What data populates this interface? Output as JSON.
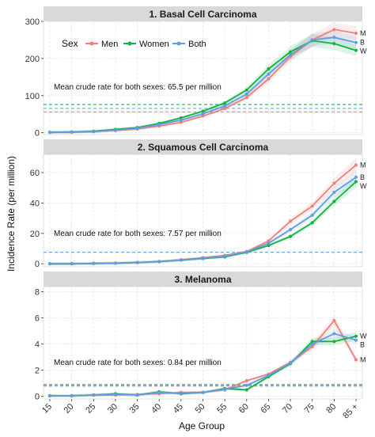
{
  "colors": {
    "Men": "#f07f78",
    "Women": "#12b23f",
    "Both": "#5f9de3"
  },
  "chart_data": {
    "type": "line",
    "xlabel": "Age Group",
    "ylabel": "Incidence Rate (per million)",
    "categories": [
      "15",
      "20",
      "25",
      "30",
      "35",
      "40",
      "45",
      "50",
      "55",
      "60",
      "65",
      "70",
      "75",
      "80",
      "85 +"
    ],
    "legend": {
      "title": "Sex",
      "entries": [
        "Men",
        "Women",
        "Both"
      ],
      "placement": "top-left inside panel 1"
    },
    "grid": true,
    "panels": [
      {
        "title": "1. Basal Cell Carcinoma",
        "ylim": [
          -5,
          300
        ],
        "yticks": [
          "0",
          "100",
          "200",
          "300"
        ],
        "yticks_values": [
          0,
          100,
          200,
          300
        ],
        "mean_rate_text": "Mean crude rate for both sexes: 65.5 per million",
        "ref_lines": {
          "Women": 76,
          "Both": 65.5,
          "Men": 56
        },
        "end_labels": [
          {
            "label": "M",
            "series": "Men"
          },
          {
            "label": "B",
            "series": "Both"
          },
          {
            "label": "W",
            "series": "Women"
          }
        ],
        "series": [
          {
            "name": "Men",
            "values": [
              1,
              1,
              3,
              6,
              10,
              18,
              28,
              45,
              65,
              95,
              145,
              205,
              250,
              278,
              268
            ]
          },
          {
            "name": "Women",
            "values": [
              1,
              2,
              4,
              9,
              14,
              25,
              40,
              58,
              80,
              115,
              172,
              218,
              248,
              240,
              222
            ]
          },
          {
            "name": "Both",
            "values": [
              1,
              2,
              3,
              7,
              12,
              22,
              34,
              51,
              72,
              104,
              158,
              210,
              250,
              257,
              243
            ]
          }
        ]
      },
      {
        "title": "2. Squamous Cell Carcinoma",
        "ylim": [
          -2,
          72
        ],
        "yticks": [
          "0",
          "20",
          "40",
          "60"
        ],
        "yticks_values": [
          0,
          20,
          40,
          60
        ],
        "mean_rate_text": "Mean crude rate for both sexes: 7.57 per million",
        "ref_lines": {
          "Both": 7.57
        },
        "end_labels": [
          {
            "label": "M",
            "series": "Men"
          },
          {
            "label": "B",
            "series": "Both"
          },
          {
            "label": "W",
            "series": "Women"
          }
        ],
        "series": [
          {
            "name": "Men",
            "values": [
              0,
              0,
              0.2,
              0.4,
              0.8,
              1.5,
              2.6,
              4,
              5.5,
              8,
              15,
              28,
              38,
              53,
              65
            ]
          },
          {
            "name": "Women",
            "values": [
              0,
              0,
              0.2,
              0.4,
              0.8,
              1.4,
              2.4,
              3.4,
              4.5,
              7.5,
              12,
              18,
              27,
              41,
              54
            ]
          },
          {
            "name": "Both",
            "values": [
              0,
              0,
              0.2,
              0.4,
              0.8,
              1.4,
              2.5,
              3.6,
              5,
              7.8,
              13.5,
              22.5,
              32,
              47,
              57
            ]
          }
        ]
      },
      {
        "title": "3. Melanoma",
        "ylim": [
          -0.2,
          8.4
        ],
        "yticks": [
          "0",
          "2",
          "4",
          "6",
          "8"
        ],
        "yticks_values": [
          0,
          2,
          4,
          6,
          8
        ],
        "mean_rate_text": "Mean crude rate for both sexes: 0.84 per million",
        "ref_lines": {
          "Women": 0.9,
          "Both": 0.84,
          "Men": 0.78
        },
        "end_labels": [
          {
            "label": "W",
            "series": "Women"
          },
          {
            "label": "B",
            "series": "Both"
          },
          {
            "label": "M",
            "series": "Men"
          }
        ],
        "series": [
          {
            "name": "Men",
            "values": [
              0.05,
              0.05,
              0.1,
              0.1,
              0.15,
              0.2,
              0.3,
              0.3,
              0.5,
              1.2,
              1.7,
              2.6,
              3.8,
              5.8,
              2.8
            ]
          },
          {
            "name": "Women",
            "values": [
              0.05,
              0.05,
              0.1,
              0.2,
              0.1,
              0.35,
              0.2,
              0.3,
              0.6,
              0.5,
              1.5,
              2.5,
              4.2,
              4.2,
              4.6
            ]
          },
          {
            "name": "Both",
            "values": [
              0.05,
              0.05,
              0.1,
              0.15,
              0.1,
              0.3,
              0.25,
              0.3,
              0.55,
              0.85,
              1.6,
              2.55,
              4,
              4.8,
              4.3
            ]
          }
        ]
      }
    ]
  }
}
